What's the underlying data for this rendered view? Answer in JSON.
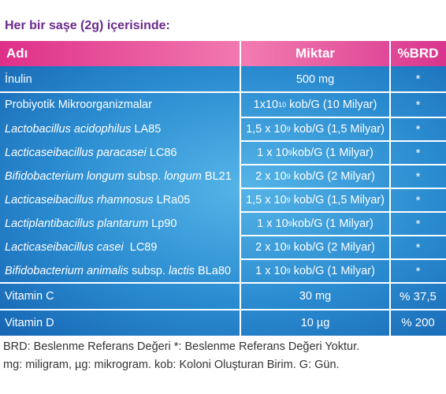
{
  "header": {
    "title": "Her bir saşe (2g) içerisinde:"
  },
  "table": {
    "columns": [
      "Adı",
      "Miktar",
      "%BRD"
    ],
    "rows": [
      {
        "name": [
          {
            "text": "İnulin"
          }
        ],
        "amount": [
          {
            "text": "500 mg"
          }
        ],
        "brd": "*"
      },
      {
        "name": [
          {
            "text": "Probiyotik Mikroorganizmalar"
          }
        ],
        "amount": [
          {
            "text": "1x10"
          },
          {
            "text": "10",
            "sup": true
          },
          {
            "text": " kob/G (10 Milyar)"
          }
        ],
        "brd": "*"
      },
      {
        "name": [
          {
            "text": "Lactobacillus acidophilus",
            "italic": true
          },
          {
            "text": " LA85"
          }
        ],
        "amount": [
          {
            "text": "1,5 x 10"
          },
          {
            "text": "9",
            "sup": true
          },
          {
            "text": " kob/G (1,5 Milyar)"
          }
        ],
        "brd": "*"
      },
      {
        "name": [
          {
            "text": "Lacticaseibacillus paracasei",
            "italic": true
          },
          {
            "text": " LC86"
          }
        ],
        "amount": [
          {
            "text": "1 x 10"
          },
          {
            "text": "9",
            "sup": true
          },
          {
            "text": "kob/G (1 Milyar)"
          }
        ],
        "brd": "*"
      },
      {
        "name": [
          {
            "text": "Bifidobacterium longum",
            "italic": true
          },
          {
            "text": " subsp. "
          },
          {
            "text": "longum",
            "italic": true
          },
          {
            "text": " BL21"
          }
        ],
        "amount": [
          {
            "text": "2 x 10"
          },
          {
            "text": "9",
            "sup": true
          },
          {
            "text": " kob/G (2 Milyar)"
          }
        ],
        "brd": "*"
      },
      {
        "name": [
          {
            "text": "Lacticaseibacillus rhamnosus",
            "italic": true
          },
          {
            "text": " LRa05"
          }
        ],
        "amount": [
          {
            "text": "1,5 x 10"
          },
          {
            "text": "9",
            "sup": true
          },
          {
            "text": " kob/G (1,5 Milyar)"
          }
        ],
        "brd": "*"
      },
      {
        "name": [
          {
            "text": "Lactiplantibacillus plantarum",
            "italic": true
          },
          {
            "text": " Lp90"
          }
        ],
        "amount": [
          {
            "text": "1 x 10"
          },
          {
            "text": "9",
            "sup": true
          },
          {
            "text": "kob/G (1 Milyar)"
          }
        ],
        "brd": "*"
      },
      {
        "name": [
          {
            "text": "Lacticaseibacillus casei",
            "italic": true
          },
          {
            "text": "  LC89"
          }
        ],
        "amount": [
          {
            "text": "2 x 10"
          },
          {
            "text": "9",
            "sup": true
          },
          {
            "text": " kob/G (2 Milyar)"
          }
        ],
        "brd": "*"
      },
      {
        "name": [
          {
            "text": "Bifidobacterium animalis",
            "italic": true
          },
          {
            "text": " subsp. "
          },
          {
            "text": "lactis",
            "italic": true
          },
          {
            "text": " BLa80"
          }
        ],
        "amount": [
          {
            "text": "1 x 10"
          },
          {
            "text": "9",
            "sup": true
          },
          {
            "text": " kob/G (1 Milyar)"
          }
        ],
        "brd": "*"
      },
      {
        "name": [
          {
            "text": "Vitamin C"
          }
        ],
        "amount": [
          {
            "text": "30 mg"
          }
        ],
        "brd": "% 37,5"
      },
      {
        "name": [
          {
            "text": "Vitamin D"
          }
        ],
        "amount": [
          {
            "text": "10 µg"
          }
        ],
        "brd": "% 200"
      }
    ]
  },
  "footer": [
    "BRD: Beslenme Referans Değeri *: Beslenme Referans Değeri Yoktur.",
    "mg: miligram, µg: mikrogram. kob: Koloni Oluşturan Birim. G: Gün."
  ]
}
